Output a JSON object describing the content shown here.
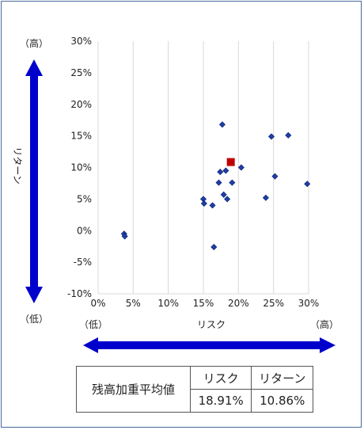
{
  "chart_data": {
    "type": "scatter",
    "xlabel": "リスク",
    "ylabel": "リターン",
    "x_low_label": "（低）",
    "x_high_label": "（高）",
    "y_low_label": "（低）",
    "y_high_label": "（高）",
    "xlim": [
      0,
      30
    ],
    "ylim": [
      -10,
      30
    ],
    "x_ticks": [
      0,
      5,
      10,
      15,
      20,
      25,
      30
    ],
    "y_ticks": [
      -10,
      -5,
      0,
      5,
      10,
      15,
      20,
      25,
      30
    ],
    "tick_format": "percent",
    "grid": "vertical",
    "series": [
      {
        "marker": "diamond",
        "color": "#1f3ea6",
        "points": [
          [
            3.7,
            -0.5
          ],
          [
            3.8,
            -0.9
          ],
          [
            15.0,
            5.0
          ],
          [
            15.1,
            4.3
          ],
          [
            16.3,
            4.0
          ],
          [
            16.5,
            -2.6
          ],
          [
            17.2,
            7.6
          ],
          [
            17.4,
            9.3
          ],
          [
            17.7,
            16.8
          ],
          [
            17.9,
            5.7
          ],
          [
            18.2,
            9.5
          ],
          [
            18.4,
            5.0
          ],
          [
            19.1,
            7.6
          ],
          [
            20.4,
            10.0
          ],
          [
            23.9,
            5.2
          ],
          [
            24.7,
            14.9
          ],
          [
            25.2,
            8.6
          ],
          [
            27.1,
            15.1
          ],
          [
            29.8,
            7.4
          ]
        ]
      },
      {
        "marker": "square",
        "color": "#c00000",
        "points": [
          [
            18.91,
            10.86
          ]
        ]
      }
    ]
  },
  "summary": {
    "row_label": "残高加重平均値",
    "risk_header": "リスク",
    "return_header": "リターン",
    "risk_value": "18.91%",
    "return_value": "10.86%"
  },
  "colors": {
    "arrow": "#0000cc",
    "grid": "#d9d9d9",
    "frame": "#4a6a9a"
  }
}
